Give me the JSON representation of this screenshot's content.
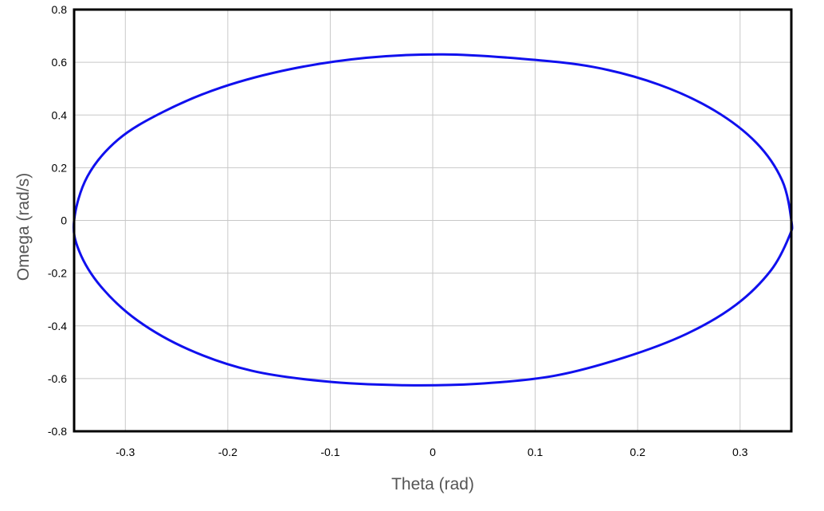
{
  "chart_data": {
    "type": "line",
    "xlabel": "Theta (rad)",
    "ylabel": "Omega (rad/s)",
    "xlim": [
      -0.35,
      0.35
    ],
    "ylim": [
      -0.8,
      0.8
    ],
    "x_ticks": [
      -0.3,
      -0.2,
      -0.1,
      0,
      0.1,
      0.2,
      0.3
    ],
    "y_ticks": [
      0.8,
      0.6,
      0.4,
      0.2,
      0,
      -0.2,
      -0.4,
      -0.6,
      -0.8
    ],
    "x_tick_labels": [
      "-0.3",
      "-0.2",
      "-0.1",
      "0",
      "0.1",
      "0.2",
      "0.3"
    ],
    "y_tick_labels": [
      "0.8",
      "0.6",
      "0.4",
      "0.2",
      "0",
      "-0.2",
      "-0.4",
      "-0.6",
      "-0.8"
    ],
    "grid": true,
    "series": [
      {
        "color": "#1010ee",
        "x": [
          0.35,
          0.341,
          0.316,
          0.275,
          0.221,
          0.157,
          0.085,
          0.01,
          -0.065,
          -0.139,
          -0.206,
          -0.263,
          -0.307,
          -0.337,
          -0.35,
          -0.345,
          -0.324,
          -0.288,
          -0.238,
          -0.177,
          -0.107,
          -0.033,
          0.043,
          0.118,
          0.187,
          0.248,
          0.296,
          0.33,
          0.348,
          0.35
        ],
        "y": [
          0,
          0.152,
          0.294,
          0.417,
          0.515,
          0.582,
          0.614,
          0.63,
          0.617,
          0.574,
          0.505,
          0.412,
          0.307,
          0.167,
          0,
          -0.117,
          -0.25,
          -0.38,
          -0.49,
          -0.57,
          -0.61,
          -0.625,
          -0.62,
          -0.59,
          -0.52,
          -0.43,
          -0.32,
          -0.19,
          -0.06,
          0
        ]
      }
    ]
  }
}
